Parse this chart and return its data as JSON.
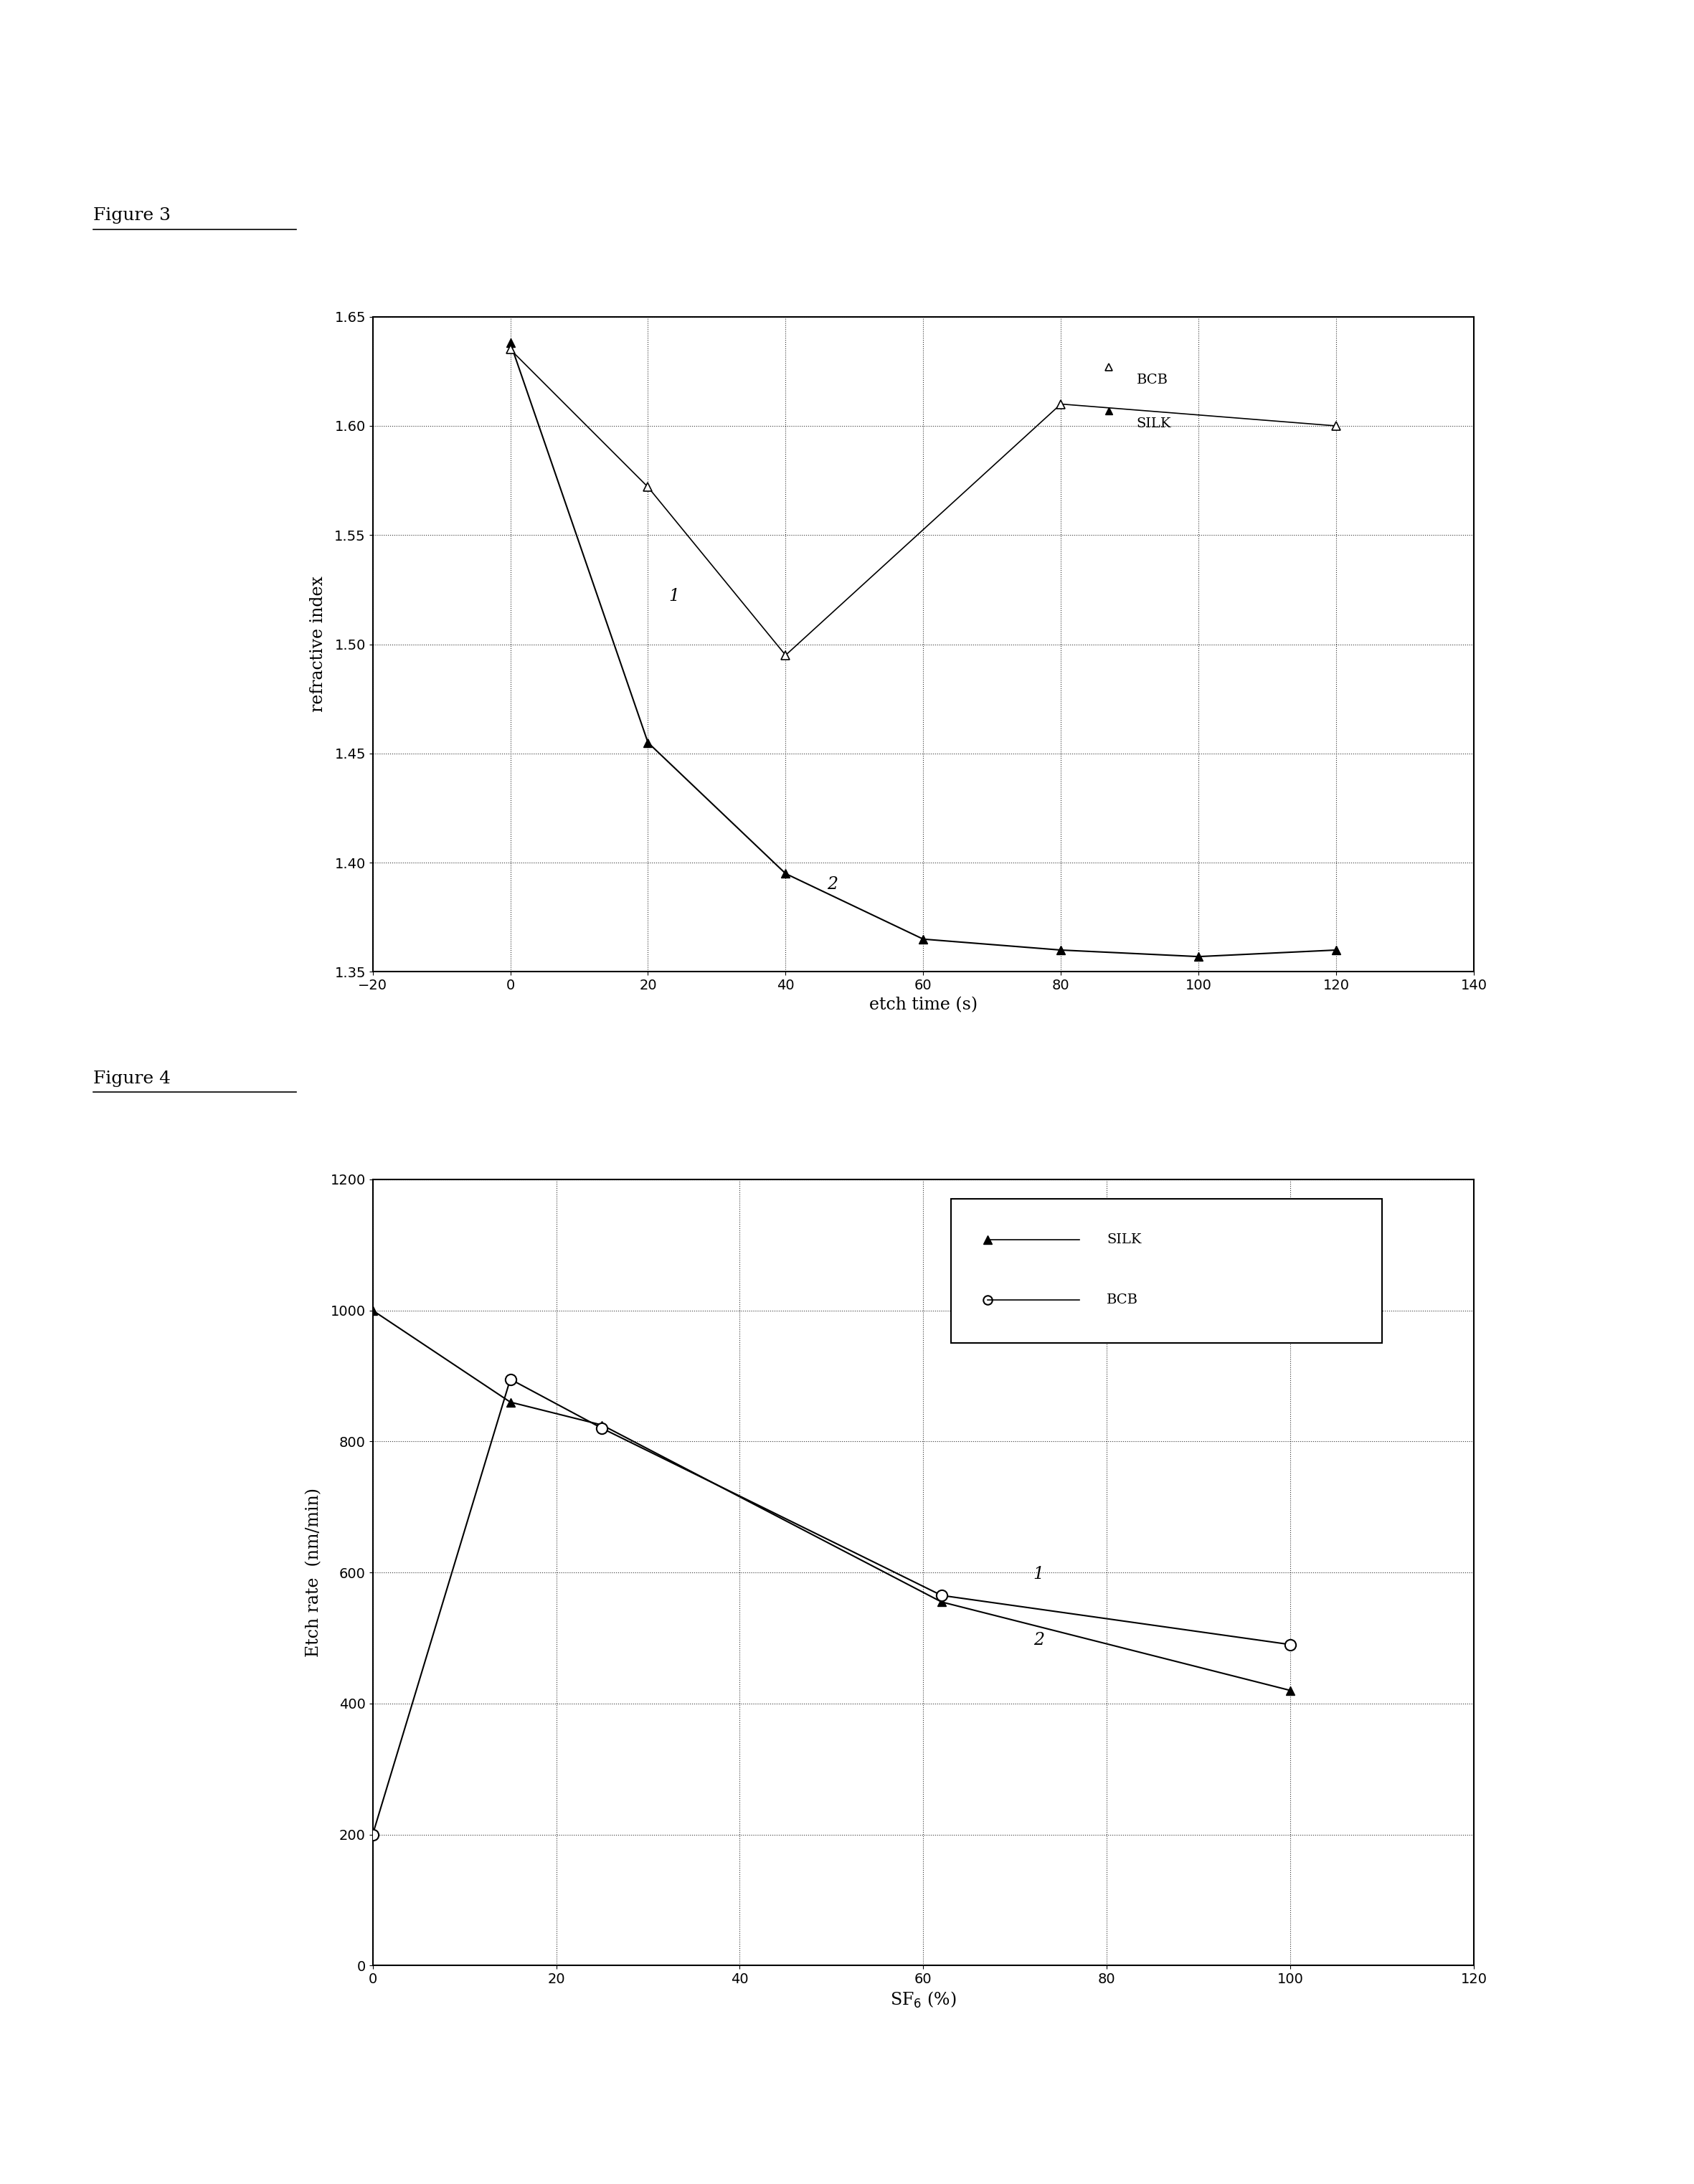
{
  "fig3_silk_x": [
    0,
    20,
    40,
    60,
    80,
    100,
    120
  ],
  "fig3_silk_y": [
    1.638,
    1.455,
    1.395,
    1.365,
    1.36,
    1.357,
    1.36
  ],
  "fig3_bcb_x": [
    0,
    20,
    40,
    80,
    120
  ],
  "fig3_bcb_y": [
    1.635,
    1.572,
    1.495,
    1.61,
    1.6
  ],
  "fig3_xlabel": "etch time (s)",
  "fig3_ylabel": "refractive index",
  "fig3_xlim": [
    -20,
    140
  ],
  "fig3_ylim": [
    1.35,
    1.65
  ],
  "fig3_xticks": [
    -20,
    0,
    20,
    40,
    60,
    80,
    100,
    120,
    140
  ],
  "fig3_yticks": [
    1.35,
    1.4,
    1.45,
    1.5,
    1.55,
    1.6,
    1.65
  ],
  "fig4_silk_x": [
    0,
    15,
    25,
    62,
    100
  ],
  "fig4_silk_y": [
    1000,
    860,
    825,
    555,
    420
  ],
  "fig4_bcb_x": [
    0,
    15,
    25,
    62,
    100
  ],
  "fig4_bcb_y": [
    200,
    895,
    820,
    565,
    490
  ],
  "fig4_xlabel": "SF",
  "fig4_ylabel": "Etch rate  (nm/min)",
  "fig4_xlim": [
    0,
    120
  ],
  "fig4_ylim": [
    0,
    1200
  ],
  "fig4_xticks": [
    0,
    20,
    40,
    60,
    80,
    100,
    120
  ],
  "fig4_yticks": [
    0,
    200,
    400,
    600,
    800,
    1000,
    1200
  ]
}
